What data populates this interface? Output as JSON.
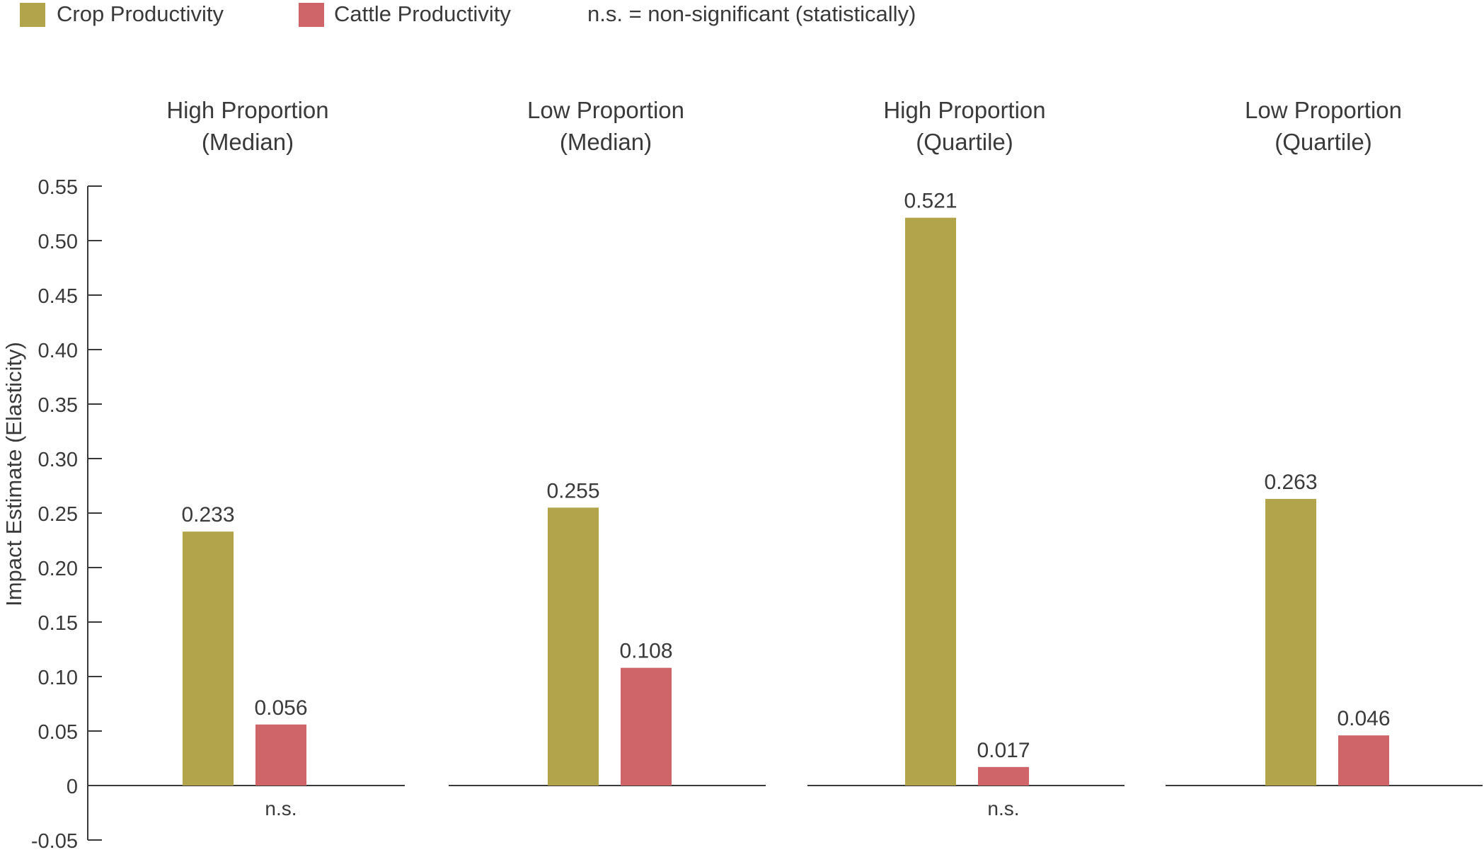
{
  "legend": {
    "items": [
      {
        "label": "Crop Productivity",
        "color": "#b1a44a"
      },
      {
        "label": "Cattle Productivity",
        "color": "#cf6569"
      }
    ],
    "note": "n.s. = non-significant (statistically)"
  },
  "chart_data": {
    "type": "bar",
    "ylabel": "Impact Estimate (Elasticity)",
    "ylim": [
      -0.05,
      0.55
    ],
    "yticks": [
      "0.55",
      "0.50",
      "0.45",
      "0.40",
      "0.35",
      "0.30",
      "0.25",
      "0.20",
      "0.15",
      "0.10",
      "0.05",
      "0",
      "-0.05"
    ],
    "ytick_values": [
      0.55,
      0.5,
      0.45,
      0.4,
      0.35,
      0.3,
      0.25,
      0.2,
      0.15,
      0.1,
      0.05,
      0,
      -0.05
    ],
    "legend_position": "top-left",
    "grid": false,
    "panels": [
      {
        "title_line1": "High Proportion",
        "title_line2": "(Median)",
        "bars": [
          {
            "series": "Crop Productivity",
            "value": 0.233,
            "label": "0.233",
            "color": "#b1a44a"
          },
          {
            "series": "Cattle Productivity",
            "value": 0.056,
            "label": "0.056",
            "color": "#cf6569",
            "note": "n.s."
          }
        ]
      },
      {
        "title_line1": "Low Proportion",
        "title_line2": "(Median)",
        "bars": [
          {
            "series": "Crop Productivity",
            "value": 0.255,
            "label": "0.255",
            "color": "#b1a44a"
          },
          {
            "series": "Cattle Productivity",
            "value": 0.108,
            "label": "0.108",
            "color": "#cf6569"
          }
        ]
      },
      {
        "title_line1": "High Proportion",
        "title_line2": "(Quartile)",
        "bars": [
          {
            "series": "Crop Productivity",
            "value": 0.521,
            "label": "0.521",
            "color": "#b1a44a"
          },
          {
            "series": "Cattle Productivity",
            "value": 0.017,
            "label": "0.017",
            "color": "#cf6569",
            "note": "n.s."
          }
        ]
      },
      {
        "title_line1": "Low Proportion",
        "title_line2": "(Quartile)",
        "bars": [
          {
            "series": "Crop Productivity",
            "value": 0.263,
            "label": "0.263",
            "color": "#b1a44a"
          },
          {
            "series": "Cattle Productivity",
            "value": 0.046,
            "label": "0.046",
            "color": "#cf6569"
          }
        ]
      }
    ]
  }
}
